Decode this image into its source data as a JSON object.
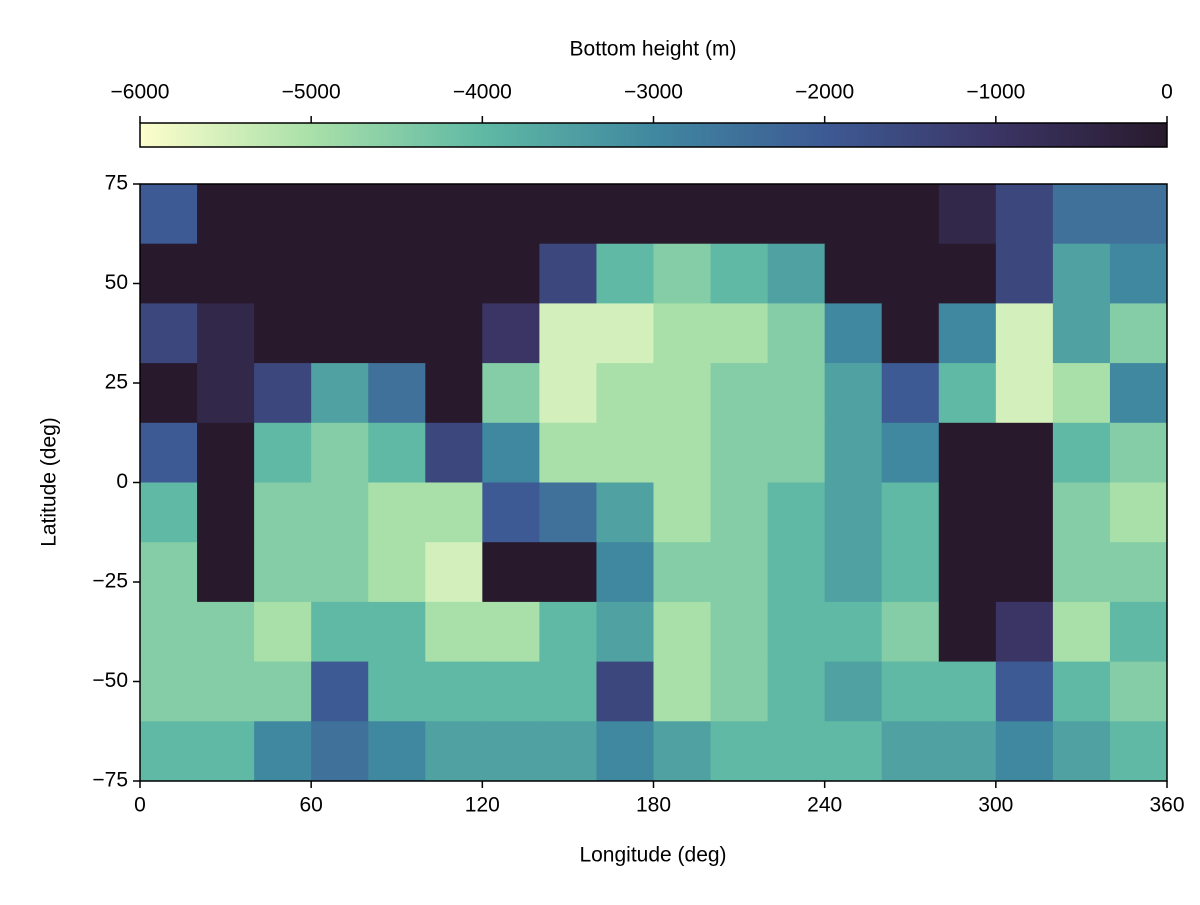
{
  "chart_data": {
    "type": "heatmap",
    "xlabel": "Longitude (deg)",
    "ylabel": "Latitude (deg)",
    "xlim": [
      0,
      360
    ],
    "ylim": [
      -75,
      75
    ],
    "xticks": [
      0,
      60,
      120,
      180,
      240,
      300,
      360
    ],
    "yticks": [
      {
        "value": -75,
        "label": "−75"
      },
      {
        "value": -50,
        "label": "−50"
      },
      {
        "value": -25,
        "label": "−25"
      },
      0,
      25,
      50,
      75
    ],
    "xbins": [
      0,
      20,
      40,
      60,
      80,
      100,
      120,
      140,
      160,
      180,
      200,
      220,
      240,
      260,
      280,
      300,
      320,
      340,
      360
    ],
    "ybins": [
      75,
      60,
      45,
      30,
      15,
      0,
      -15,
      -30,
      -45,
      -60,
      -75
    ],
    "z": [
      [
        -2000,
        0,
        0,
        0,
        0,
        0,
        0,
        0,
        0,
        0,
        0,
        0,
        0,
        0,
        -500,
        -1500,
        -2500,
        -2500
      ],
      [
        0,
        0,
        0,
        0,
        0,
        0,
        0,
        -1500,
        -4000,
        -4500,
        -4000,
        -3500,
        0,
        0,
        0,
        -1500,
        -3500,
        -3000
      ],
      [
        -1500,
        -500,
        0,
        0,
        0,
        0,
        -1000,
        -5500,
        -5500,
        -5000,
        -5000,
        -4500,
        -3000,
        0,
        -3000,
        -5500,
        -3500,
        -4500
      ],
      [
        0,
        -500,
        -1500,
        -3500,
        -2500,
        0,
        -4500,
        -5500,
        -5000,
        -5000,
        -4500,
        -4500,
        -3500,
        -2000,
        -4000,
        -5500,
        -5000,
        -3000
      ],
      [
        -2000,
        0,
        -4000,
        -4500,
        -4000,
        -1500,
        -3000,
        -5000,
        -5000,
        -5000,
        -4500,
        -4500,
        -3500,
        -3000,
        0,
        0,
        -4000,
        -4500
      ],
      [
        -4000,
        0,
        -4500,
        -4500,
        -5000,
        -5000,
        -2000,
        -2500,
        -3500,
        -5000,
        -4500,
        -4000,
        -3500,
        -4000,
        0,
        0,
        -4500,
        -5000
      ],
      [
        -4500,
        0,
        -4500,
        -4500,
        -5000,
        -5500,
        0,
        0,
        -3000,
        -4500,
        -4500,
        -4000,
        -3500,
        -4000,
        0,
        0,
        -4500,
        -4500
      ],
      [
        -4500,
        -4500,
        -5000,
        -4000,
        -4000,
        -5000,
        -5000,
        -4000,
        -3500,
        -5000,
        -4500,
        -4000,
        -4000,
        -4500,
        0,
        -1000,
        -5000,
        -4000
      ],
      [
        -4500,
        -4500,
        -4500,
        -2000,
        -4000,
        -4000,
        -4000,
        -4000,
        -1500,
        -5000,
        -4500,
        -4000,
        -3500,
        -4000,
        -4000,
        -2000,
        -4000,
        -4500
      ],
      [
        -4000,
        -4000,
        -3000,
        -2500,
        -3000,
        -3500,
        -3500,
        -3500,
        -3000,
        -3500,
        -4000,
        -4000,
        -4000,
        -3500,
        -3500,
        -3000,
        -3500,
        -4000
      ]
    ],
    "zlim": [
      -6000,
      0
    ],
    "colormap": [
      "#fdfecc",
      "#a9e0a9",
      "#5fb9a4",
      "#4088a0",
      "#3d5a94",
      "#3b3565",
      "#281a2c"
    ],
    "colorbar": {
      "label": "Bottom height (m)",
      "ticks": [
        {
          "value": -6000,
          "label": "−6000"
        },
        {
          "value": -5000,
          "label": "−5000"
        },
        {
          "value": -4000,
          "label": "−4000"
        },
        {
          "value": -3000,
          "label": "−3000"
        },
        {
          "value": -2000,
          "label": "−2000"
        },
        {
          "value": -1000,
          "label": "−1000"
        },
        0
      ]
    }
  }
}
